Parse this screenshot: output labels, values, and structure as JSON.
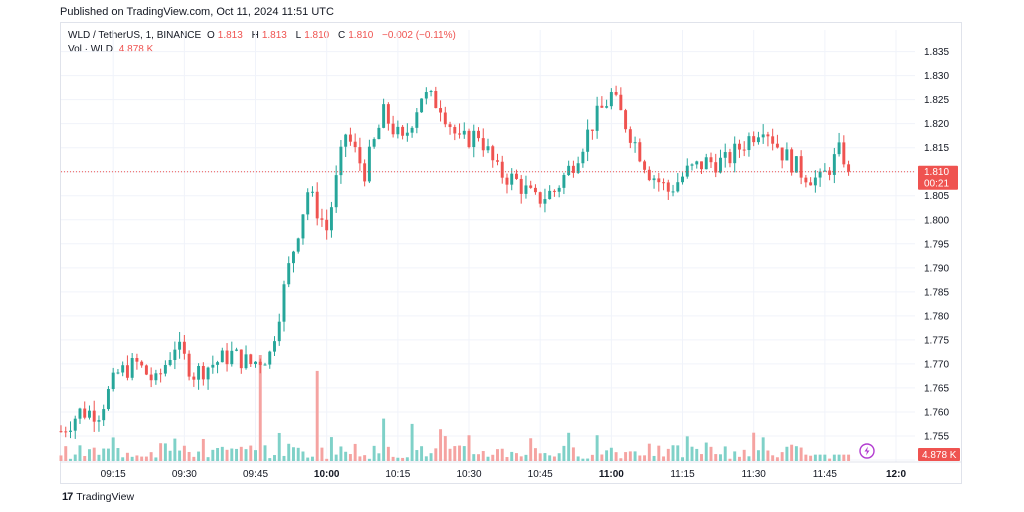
{
  "header": {
    "published": "Published on TradingView.com, Oct 11, 2024 11:51 UTC"
  },
  "legend": {
    "symbol": "WLD / TetherUS, 1, BINANCE",
    "o_label": "O",
    "o_value": "1.813",
    "h_label": "H",
    "h_value": "1.813",
    "l_label": "L",
    "l_value": "1.810",
    "c_label": "C",
    "c_value": "1.810",
    "change": "−0.002 (−0.11%)",
    "vol_label": "Vol · WLD",
    "vol_value": "4.878 K"
  },
  "footer": {
    "brand": "TradingView",
    "mark": "17"
  },
  "colors": {
    "up": "#26a69a",
    "down": "#ef5350",
    "vol_up": "#7fd1c8",
    "vol_down": "#f5a3a1",
    "accent": "#ef5350"
  },
  "chart_data": {
    "type": "candlestick",
    "title": "WLD / TetherUS, 1, BINANCE",
    "xlabel": "",
    "ylabel": "",
    "ylim": [
      1.75,
      1.837
    ],
    "yticks": [
      "1.835",
      "1.830",
      "1.825",
      "1.820",
      "1.815",
      "1.810",
      "1.805",
      "1.800",
      "1.795",
      "1.790",
      "1.785",
      "1.780",
      "1.775",
      "1.770",
      "1.765",
      "1.760",
      "1.755",
      "1.750"
    ],
    "x_start": "09:04",
    "x_end": "12:04",
    "xticks": [
      {
        "t": "09:15",
        "bold": false
      },
      {
        "t": "09:30",
        "bold": false
      },
      {
        "t": "09:45",
        "bold": false
      },
      {
        "t": "10:00",
        "bold": true
      },
      {
        "t": "10:15",
        "bold": false
      },
      {
        "t": "10:30",
        "bold": false
      },
      {
        "t": "10:45",
        "bold": false
      },
      {
        "t": "11:00",
        "bold": true
      },
      {
        "t": "11:15",
        "bold": false
      },
      {
        "t": "11:30",
        "bold": false
      },
      {
        "t": "11:45",
        "bold": false
      },
      {
        "t": "12:0",
        "bold": true
      }
    ],
    "last_price": "1.810",
    "countdown": "00:21",
    "last_volume": "4.878 K",
    "anchors": [
      [
        "09:04",
        1.756
      ],
      [
        "09:08",
        1.76
      ],
      [
        "09:12",
        1.76
      ],
      [
        "09:16",
        1.768
      ],
      [
        "09:20",
        1.77
      ],
      [
        "09:24",
        1.766
      ],
      [
        "09:28",
        1.774
      ],
      [
        "09:32",
        1.768
      ],
      [
        "09:36",
        1.77
      ],
      [
        "09:40",
        1.772
      ],
      [
        "09:44",
        1.77
      ],
      [
        "09:48",
        1.772
      ],
      [
        "09:52",
        1.79
      ],
      [
        "09:56",
        1.806
      ],
      [
        "10:00",
        1.798
      ],
      [
        "10:04",
        1.818
      ],
      [
        "10:08",
        1.81
      ],
      [
        "10:12",
        1.822
      ],
      [
        "10:16",
        1.816
      ],
      [
        "10:20",
        1.826
      ],
      [
        "10:24",
        1.824
      ],
      [
        "10:28",
        1.816
      ],
      [
        "10:32",
        1.818
      ],
      [
        "10:36",
        1.81
      ],
      [
        "10:40",
        1.808
      ],
      [
        "10:44",
        1.804
      ],
      [
        "10:48",
        1.806
      ],
      [
        "10:52",
        1.812
      ],
      [
        "10:56",
        1.82
      ],
      [
        "11:00",
        1.826
      ],
      [
        "11:04",
        1.818
      ],
      [
        "11:08",
        1.81
      ],
      [
        "11:12",
        1.806
      ],
      [
        "11:16",
        1.81
      ],
      [
        "11:20",
        1.812
      ],
      [
        "11:24",
        1.812
      ],
      [
        "11:28",
        1.816
      ],
      [
        "11:32",
        1.82
      ],
      [
        "11:36",
        1.814
      ],
      [
        "11:40",
        1.81
      ],
      [
        "11:44",
        1.808
      ],
      [
        "11:48",
        1.814
      ],
      [
        "11:49",
        1.813
      ],
      [
        "11:50",
        1.81
      ]
    ],
    "volume_spikes": [
      [
        "09:46",
        20
      ],
      [
        "09:58",
        17
      ],
      [
        "10:12",
        8
      ],
      [
        "10:18",
        7
      ],
      [
        "10:24",
        6
      ],
      [
        "11:00",
        2.5
      ]
    ]
  }
}
